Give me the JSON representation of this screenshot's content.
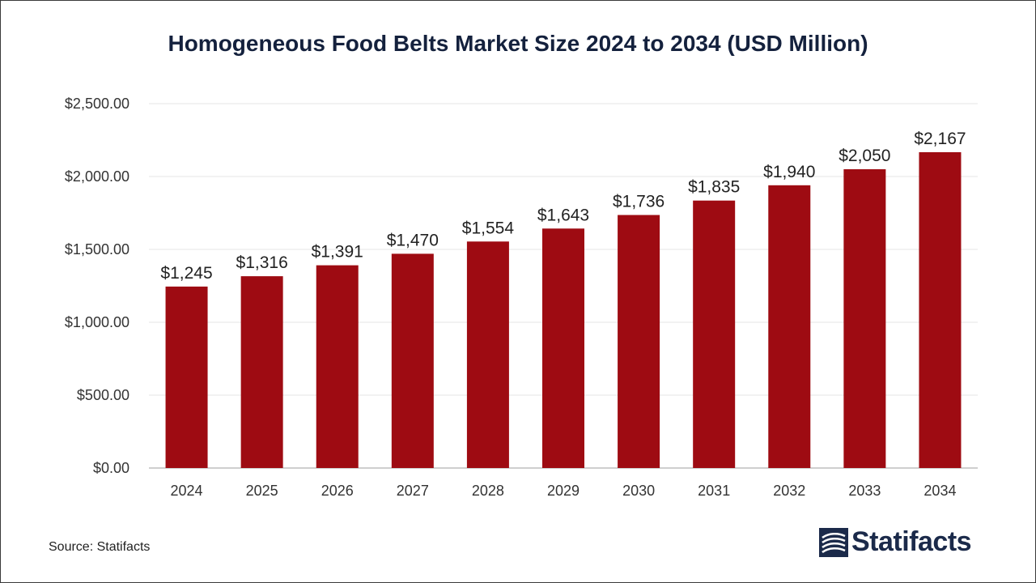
{
  "chart_data": {
    "type": "bar",
    "title": "Homogeneous Food Belts Market Size 2024 to 2034 (USD Million)",
    "xlabel": "",
    "ylabel": "",
    "categories": [
      "2024",
      "2025",
      "2026",
      "2027",
      "2028",
      "2029",
      "2030",
      "2031",
      "2032",
      "2033",
      "2034"
    ],
    "values": [
      1245,
      1316,
      1391,
      1470,
      1554,
      1643,
      1736,
      1835,
      1940,
      2050,
      2167
    ],
    "value_labels": [
      "$1,245",
      "$1,316",
      "$1,391",
      "$1,470",
      "$1,554",
      "$1,643",
      "$1,736",
      "$1,835",
      "$1,940",
      "$2,050",
      "$2,167"
    ],
    "ylim": [
      0,
      2500
    ],
    "yticks": [
      0,
      500,
      1000,
      1500,
      2000,
      2500
    ],
    "ytick_labels": [
      "$0.00",
      "$500.00",
      "$1,000.00",
      "$1,500.00",
      "$2,000.00",
      "$2,500.00"
    ],
    "grid": true,
    "legend": "none",
    "bar_color": "#9e0b12"
  },
  "footer": {
    "source": "Source: Statifacts",
    "logo_text": "Statifacts",
    "logo_icon": "statifacts-logo-icon"
  }
}
